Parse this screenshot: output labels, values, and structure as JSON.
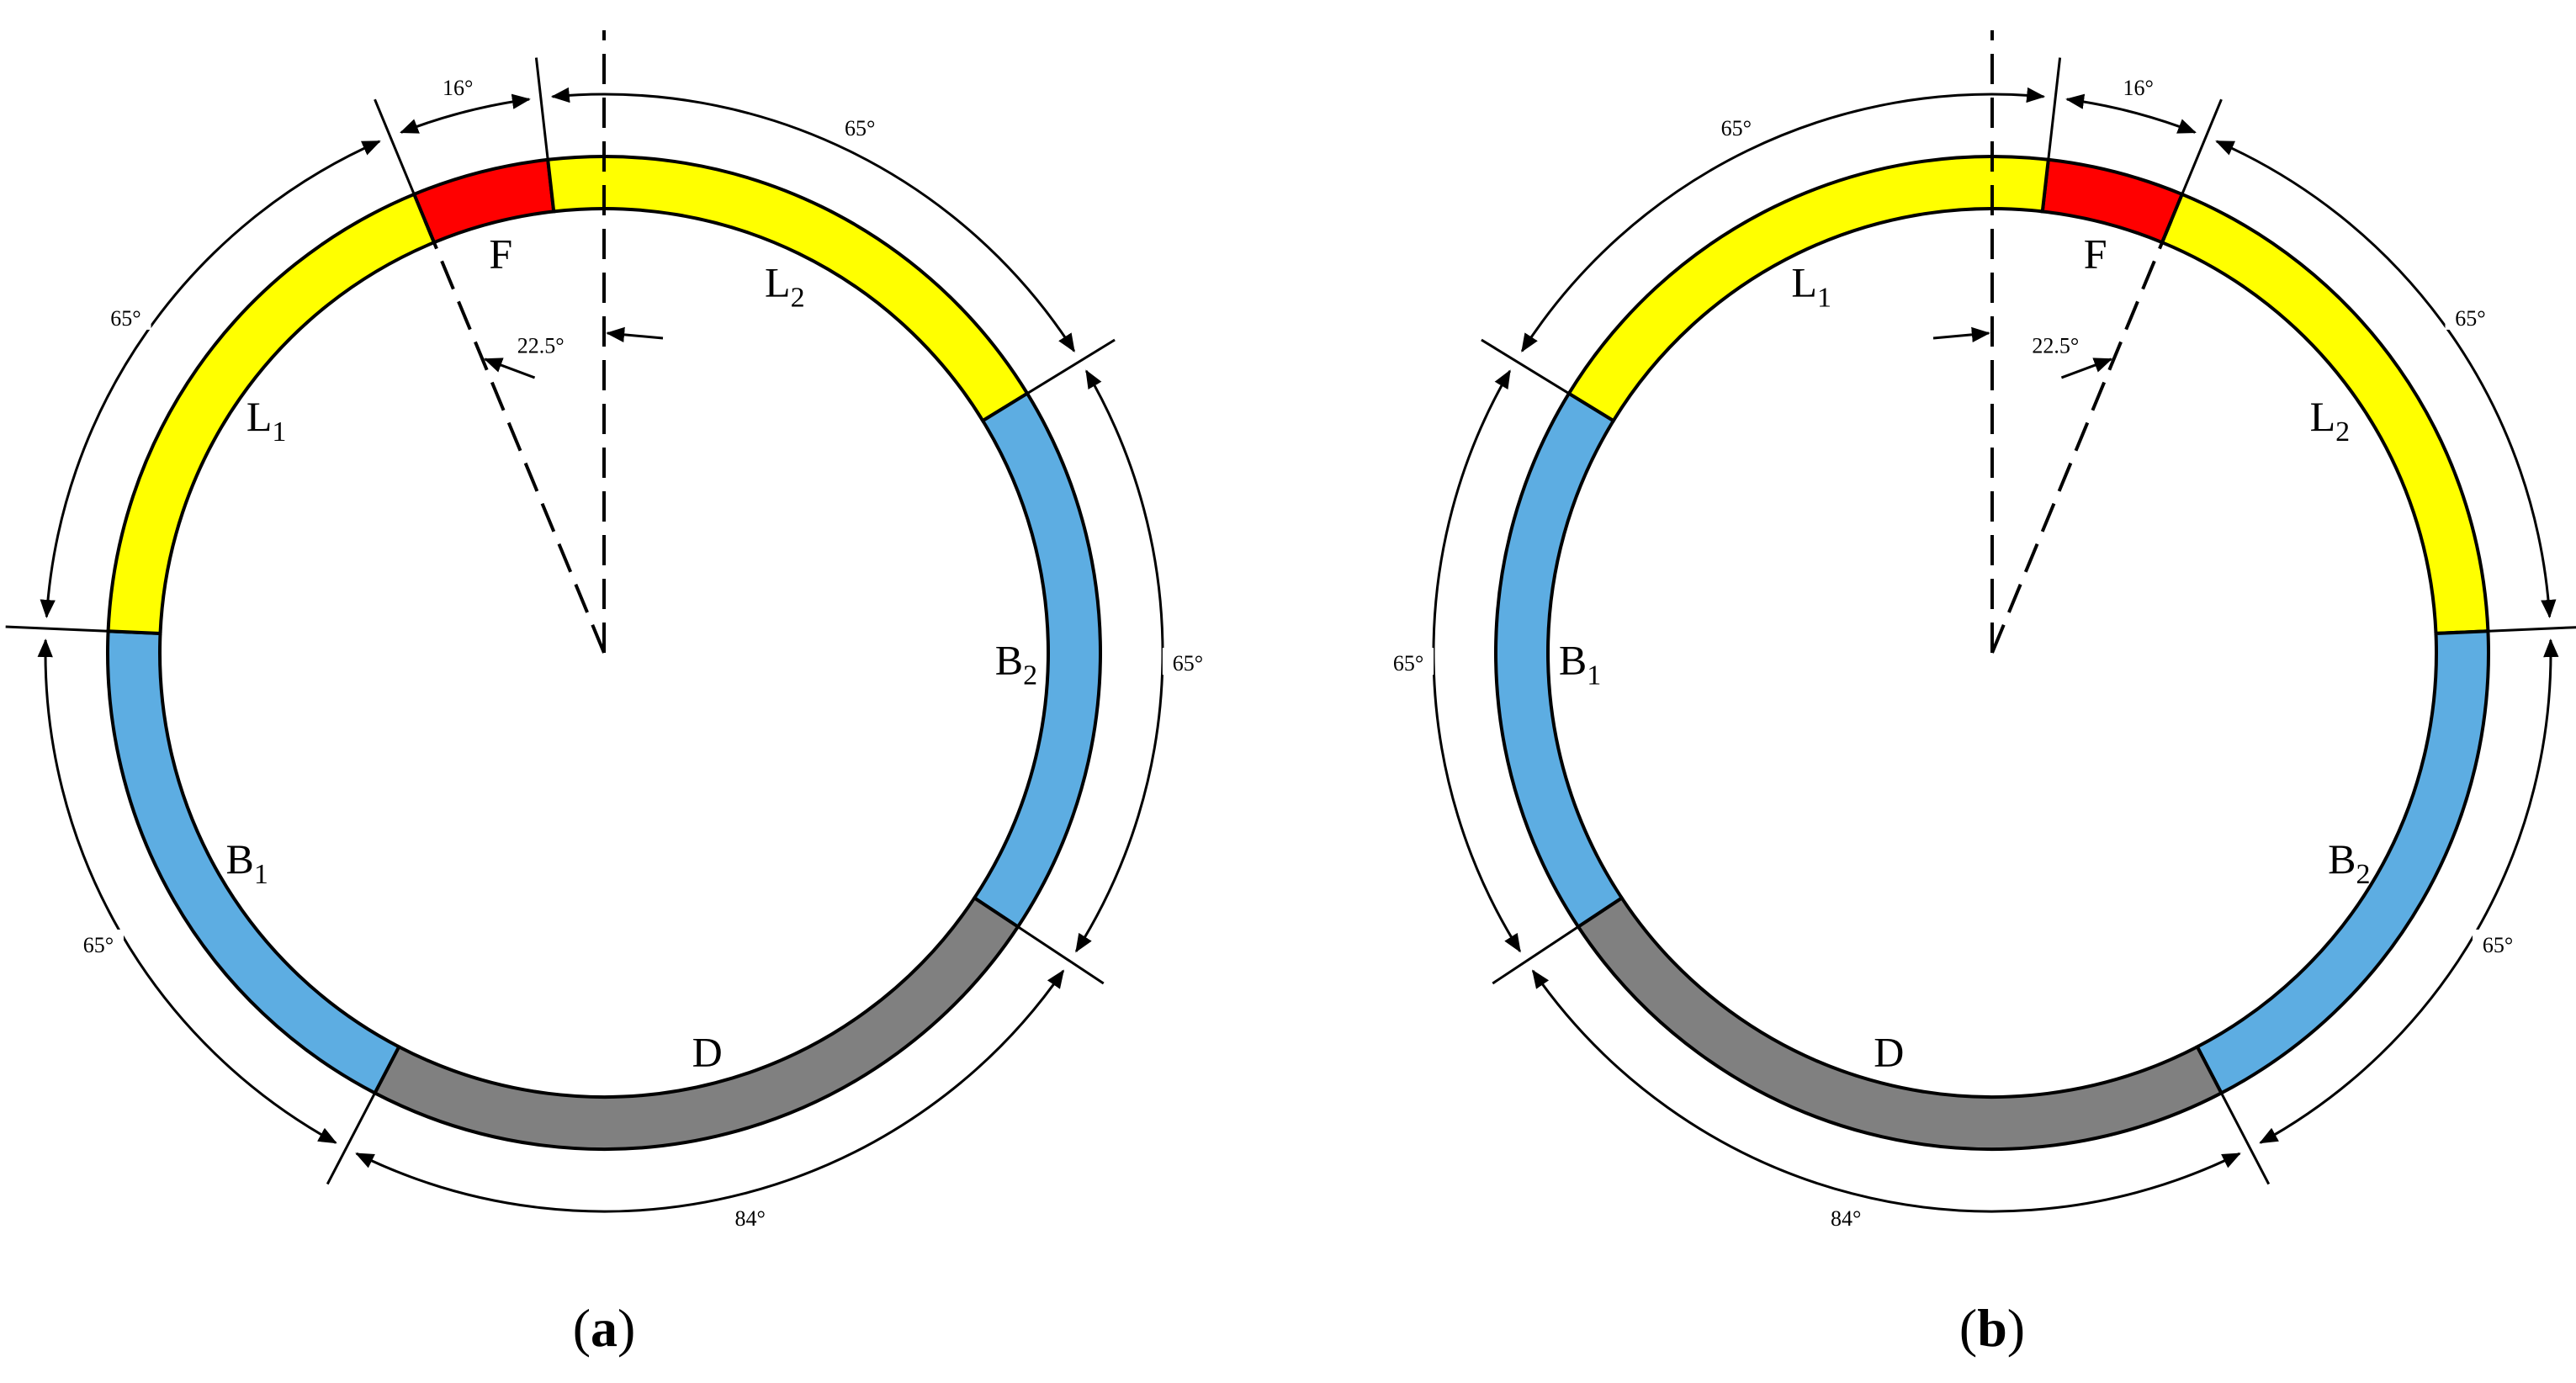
{
  "colors": {
    "F": "#ff0000",
    "L": "#ffff00",
    "B": "#5dade2",
    "D": "#808080",
    "stroke": "#000000"
  },
  "diagrams": [
    {
      "id": "a",
      "caption": {
        "open": "(",
        "letter": "a",
        "close": ")"
      },
      "ref_angle": "22.5°",
      "segments": [
        {
          "key": "F",
          "label": "F",
          "sub": "",
          "color_key": "F",
          "start": -22.5,
          "end": -6.5
        },
        {
          "key": "L2",
          "label": "L",
          "sub": "2",
          "color_key": "L",
          "start": -6.5,
          "end": 58.5
        },
        {
          "key": "B2",
          "label": "B",
          "sub": "2",
          "color_key": "B",
          "start": 58.5,
          "end": 123.5
        },
        {
          "key": "D",
          "label": "D",
          "sub": "",
          "color_key": "D",
          "start": 123.5,
          "end": 207.5
        },
        {
          "key": "B1",
          "label": "B",
          "sub": "1",
          "color_key": "B",
          "start": 207.5,
          "end": 272.5
        },
        {
          "key": "L1",
          "label": "L",
          "sub": "1",
          "color_key": "L",
          "start": 272.5,
          "end": 337.5
        }
      ],
      "dims": [
        {
          "label": "16°",
          "start": -22.5,
          "end": -6.5
        },
        {
          "label": "65°",
          "start": -6.5,
          "end": 58.5
        },
        {
          "label": "65°",
          "start": 58.5,
          "end": 123.5
        },
        {
          "label": "84°",
          "start": 123.5,
          "end": 207.5
        },
        {
          "label": "65°",
          "start": 207.5,
          "end": 272.5
        },
        {
          "label": "65°",
          "start": 272.5,
          "end": 337.5
        }
      ]
    },
    {
      "id": "b",
      "caption": {
        "open": "(",
        "letter": "b",
        "close": ")"
      },
      "ref_angle": "22.5°",
      "segments": [
        {
          "key": "F",
          "label": "F",
          "sub": "",
          "color_key": "F",
          "start": 6.5,
          "end": 22.5
        },
        {
          "key": "L2",
          "label": "L",
          "sub": "2",
          "color_key": "L",
          "start": 22.5,
          "end": 87.5
        },
        {
          "key": "B2",
          "label": "B",
          "sub": "2",
          "color_key": "B",
          "start": 87.5,
          "end": 152.5
        },
        {
          "key": "D",
          "label": "D",
          "sub": "",
          "color_key": "D",
          "start": 152.5,
          "end": 236.5
        },
        {
          "key": "B1",
          "label": "B",
          "sub": "1",
          "color_key": "B",
          "start": 236.5,
          "end": 301.5
        },
        {
          "key": "L1",
          "label": "L",
          "sub": "1",
          "color_key": "L",
          "start": 301.5,
          "end": 366.5
        }
      ],
      "dims": [
        {
          "label": "16°",
          "start": 6.5,
          "end": 22.5
        },
        {
          "label": "65°",
          "start": 22.5,
          "end": 87.5
        },
        {
          "label": "65°",
          "start": 87.5,
          "end": 152.5
        },
        {
          "label": "84°",
          "start": 152.5,
          "end": 236.5
        },
        {
          "label": "65°",
          "start": 236.5,
          "end": 301.5
        },
        {
          "label": "65°",
          "start": 301.5,
          "end": 366.5
        }
      ]
    }
  ]
}
